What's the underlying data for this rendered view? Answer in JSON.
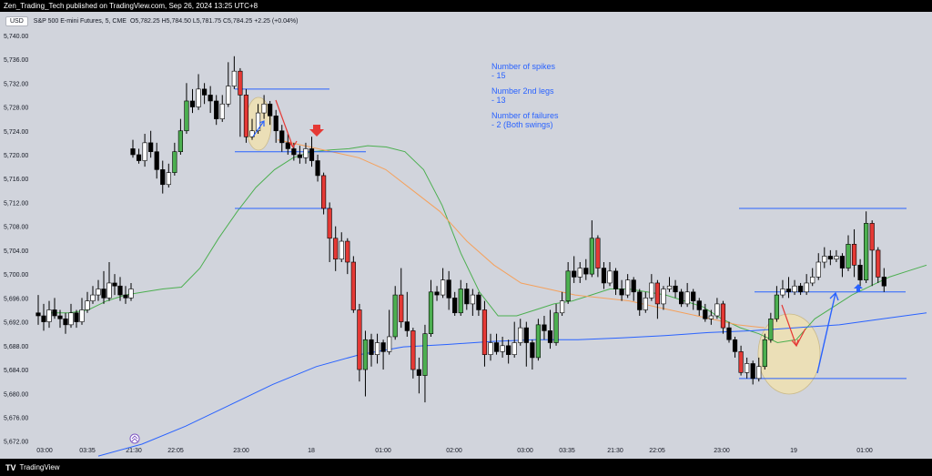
{
  "header": {
    "published_line": "Zen_Trading_Tech published on TradingView.com, Sep 26, 2024 13:25 UTC+8"
  },
  "legend": {
    "currency": "USD",
    "symbol": "S&P 500 E-mini Futures, 5, CME",
    "ohlc": "O5,782.25  H5,784.50  L5,781.75  C5,784.25  +2.25 (+0.04%)"
  },
  "footer": {
    "logo_glyph": "TV",
    "brand": "TradingView"
  },
  "notes": {
    "spikes_label": "Number of spikes",
    "spikes_value": "- 15",
    "second_legs_label": "Number 2nd legs",
    "second_legs_value": "- 13",
    "failures_label": "Number of failures",
    "failures_value": "- 2 (Both swings)"
  },
  "colors": {
    "background": "#d1d4dc",
    "bull_body": "#ffffff",
    "bear_body": "#000000",
    "signal_bull": "#4caf50",
    "signal_bear": "#e53935",
    "ema_fast": "#4caf50",
    "ema_slow": "#2962ff",
    "ema_orange": "#f5a15c",
    "annotation_blue": "#2962ff",
    "annotation_red": "#e53935",
    "highlight_fill": "#f0e0b0"
  },
  "chart_data": {
    "type": "candlestick",
    "y_tick_labels": [
      "5,740.00",
      "5,736.00",
      "5,732.00",
      "5,728.00",
      "5,724.00",
      "5,720.00",
      "5,716.00",
      "5,712.00",
      "5,708.00",
      "5,704.00",
      "5,700.00",
      "5,696.00",
      "5,692.00",
      "5,688.00",
      "5,684.00",
      "5,680.00",
      "5,676.00",
      "5,672.00"
    ],
    "x_tick_labels": [
      "03:00",
      "03:35",
      "21:30",
      "22:05",
      "23:00",
      "18",
      "01:00",
      "02:00",
      "03:00",
      "03:35",
      "21:30",
      "22:05",
      "23:00",
      "19",
      "01:00"
    ],
    "ylim": [
      5671.5,
      5741.5
    ],
    "candles": [
      [
        5693.5,
        5693.0,
        5696.5,
        5691.5
      ],
      [
        5693.0,
        5692.0,
        5695.0,
        5690.5
      ],
      [
        5692.0,
        5694.0,
        5695.5,
        5691.0
      ],
      [
        5694.0,
        5693.0,
        5696.0,
        5692.5
      ],
      [
        5693.0,
        5692.5,
        5694.0,
        5691.0
      ],
      [
        5692.5,
        5691.5,
        5693.5,
        5690.0
      ],
      [
        5691.5,
        5693.5,
        5695.0,
        5691.0
      ],
      [
        5693.5,
        5692.0,
        5694.0,
        5691.0
      ],
      [
        5692.0,
        5694.0,
        5696.0,
        5691.5
      ],
      [
        5694.0,
        5695.5,
        5697.0,
        5693.5
      ],
      [
        5695.5,
        5696.5,
        5698.0,
        5695.0
      ],
      [
        5696.5,
        5697.5,
        5699.0,
        5695.5
      ],
      [
        5697.5,
        5696.0,
        5700.5,
        5695.0
      ],
      [
        5696.0,
        5698.5,
        5702.0,
        5695.5
      ],
      [
        5698.5,
        5698.0,
        5700.0,
        5696.5
      ],
      [
        5698.0,
        5696.5,
        5699.5,
        5695.5
      ],
      [
        5696.5,
        5696.0,
        5698.0,
        5695.0
      ],
      [
        5696.0,
        5697.5,
        5698.5,
        5695.5
      ],
      [
        5721.0,
        5720.0,
        5722.5,
        5719.5
      ],
      [
        5720.0,
        5719.0,
        5721.0,
        5718.5
      ],
      [
        5719.0,
        5722.0,
        5723.5,
        5718.0
      ],
      [
        5722.0,
        5720.5,
        5724.0,
        5719.5
      ],
      [
        5720.5,
        5717.5,
        5722.0,
        5716.0
      ],
      [
        5717.5,
        5715.0,
        5719.0,
        5713.5
      ],
      [
        5715.0,
        5717.0,
        5718.5,
        5714.5
      ],
      [
        5717.0,
        5720.5,
        5722.0,
        5716.5
      ],
      [
        5720.5,
        5724.0,
        5726.0,
        5720.0
      ],
      [
        5724.0,
        5729.0,
        5732.0,
        5723.5
      ],
      [
        5729.0,
        5728.0,
        5731.0,
        5727.0
      ],
      [
        5728.0,
        5731.0,
        5733.5,
        5727.5
      ],
      [
        5731.0,
        5730.0,
        5732.0,
        5728.5
      ],
      [
        5730.0,
        5729.0,
        5731.5,
        5727.0
      ],
      [
        5729.0,
        5726.0,
        5730.0,
        5725.0
      ],
      [
        5726.0,
        5728.5,
        5730.0,
        5725.5
      ],
      [
        5728.5,
        5731.5,
        5735.5,
        5728.0
      ],
      [
        5731.5,
        5734.0,
        5736.5,
        5731.0
      ],
      [
        5734.0,
        5730.0,
        5734.5,
        5723.0
      ],
      [
        5730.0,
        5723.0,
        5731.0,
        5722.0
      ],
      [
        5723.0,
        5724.0,
        5726.0,
        5722.5
      ],
      [
        5724.0,
        5727.0,
        5728.5,
        5723.5
      ],
      [
        5727.0,
        5728.5,
        5730.0,
        5726.0
      ],
      [
        5728.5,
        5726.5,
        5729.0,
        5725.0
      ],
      [
        5726.5,
        5724.0,
        5727.5,
        5722.0
      ],
      [
        5724.0,
        5722.0,
        5725.0,
        5720.5
      ],
      [
        5722.0,
        5721.0,
        5723.5,
        5720.0
      ],
      [
        5721.0,
        5720.0,
        5722.0,
        5719.0
      ],
      [
        5720.0,
        5719.5,
        5721.5,
        5718.5
      ],
      [
        5719.5,
        5721.0,
        5722.0,
        5718.5
      ],
      [
        5721.0,
        5719.0,
        5723.0,
        5718.0
      ],
      [
        5719.0,
        5716.5,
        5720.0,
        5715.5
      ],
      [
        5716.5,
        5711.0,
        5717.0,
        5710.0
      ],
      [
        5711.0,
        5706.0,
        5712.0,
        5702.0
      ],
      [
        5706.0,
        5702.5,
        5708.0,
        5700.5
      ],
      [
        5702.5,
        5705.5,
        5707.0,
        5702.0
      ],
      [
        5705.5,
        5702.0,
        5706.0,
        5700.0
      ],
      [
        5702.0,
        5694.0,
        5703.0,
        5693.5
      ],
      [
        5694.0,
        5684.0,
        5695.0,
        5682.0
      ],
      [
        5684.0,
        5689.0,
        5690.5,
        5679.5
      ],
      [
        5689.0,
        5686.5,
        5690.0,
        5684.5
      ],
      [
        5686.5,
        5688.5,
        5690.0,
        5685.0
      ],
      [
        5688.5,
        5687.0,
        5689.0,
        5684.0
      ],
      [
        5687.0,
        5689.5,
        5694.0,
        5686.5
      ],
      [
        5689.5,
        5696.5,
        5698.0,
        5689.0
      ],
      [
        5696.5,
        5692.0,
        5701.0,
        5691.0
      ],
      [
        5692.0,
        5690.5,
        5697.0,
        5689.5
      ],
      [
        5690.5,
        5684.0,
        5691.0,
        5682.5
      ],
      [
        5684.0,
        5683.0,
        5686.0,
        5680.0
      ],
      [
        5683.0,
        5690.0,
        5691.5,
        5678.5
      ],
      [
        5690.0,
        5697.0,
        5699.0,
        5689.5
      ],
      [
        5697.0,
        5696.5,
        5698.0,
        5695.5
      ],
      [
        5696.5,
        5699.0,
        5701.0,
        5696.0
      ],
      [
        5699.0,
        5696.0,
        5700.5,
        5694.0
      ],
      [
        5696.0,
        5693.5,
        5697.0,
        5693.0
      ],
      [
        5693.5,
        5697.5,
        5699.0,
        5693.0
      ],
      [
        5697.5,
        5695.0,
        5698.5,
        5694.0
      ],
      [
        5695.0,
        5696.5,
        5697.5,
        5693.0
      ],
      [
        5696.5,
        5694.0,
        5697.0,
        5693.0
      ],
      [
        5694.0,
        5686.5,
        5695.5,
        5684.5
      ],
      [
        5686.5,
        5688.5,
        5690.0,
        5685.5
      ],
      [
        5688.5,
        5687.0,
        5690.0,
        5686.5
      ],
      [
        5687.0,
        5688.0,
        5689.5,
        5686.0
      ],
      [
        5688.0,
        5686.5,
        5689.0,
        5685.0
      ],
      [
        5686.5,
        5688.5,
        5692.0,
        5686.0
      ],
      [
        5688.5,
        5691.0,
        5692.5,
        5688.0
      ],
      [
        5691.0,
        5688.5,
        5692.0,
        5684.5
      ],
      [
        5688.5,
        5686.0,
        5689.0,
        5684.0
      ],
      [
        5686.0,
        5691.5,
        5692.5,
        5685.5
      ],
      [
        5691.5,
        5690.5,
        5693.0,
        5689.0
      ],
      [
        5690.5,
        5688.5,
        5694.0,
        5687.5
      ],
      [
        5688.5,
        5693.5,
        5695.0,
        5688.0
      ],
      [
        5693.5,
        5695.5,
        5697.0,
        5693.0
      ],
      [
        5695.5,
        5700.5,
        5702.0,
        5695.0
      ],
      [
        5700.5,
        5699.5,
        5703.0,
        5698.5
      ],
      [
        5699.5,
        5701.0,
        5702.0,
        5698.5
      ],
      [
        5701.0,
        5700.0,
        5702.5,
        5699.0
      ],
      [
        5700.0,
        5706.0,
        5709.0,
        5699.5
      ],
      [
        5706.0,
        5701.0,
        5706.5,
        5699.5
      ],
      [
        5701.0,
        5698.5,
        5702.0,
        5697.5
      ],
      [
        5698.5,
        5700.5,
        5702.0,
        5698.0
      ],
      [
        5700.5,
        5697.5,
        5701.0,
        5696.5
      ],
      [
        5697.5,
        5696.5,
        5699.0,
        5695.5
      ],
      [
        5696.5,
        5699.0,
        5700.0,
        5696.0
      ],
      [
        5699.0,
        5697.0,
        5699.5,
        5695.5
      ],
      [
        5697.0,
        5694.0,
        5697.5,
        5693.0
      ],
      [
        5694.0,
        5696.0,
        5697.0,
        5693.5
      ],
      [
        5696.0,
        5698.5,
        5700.0,
        5695.5
      ],
      [
        5698.5,
        5695.0,
        5699.0,
        5692.5
      ],
      [
        5695.0,
        5697.5,
        5698.0,
        5694.0
      ],
      [
        5697.5,
        5698.0,
        5699.5,
        5697.0
      ],
      [
        5698.0,
        5697.0,
        5699.0,
        5696.0
      ],
      [
        5697.0,
        5695.0,
        5697.5,
        5694.5
      ],
      [
        5695.0,
        5697.0,
        5698.5,
        5694.5
      ],
      [
        5697.0,
        5695.5,
        5697.5,
        5694.0
      ],
      [
        5695.5,
        5694.0,
        5696.0,
        5693.0
      ],
      [
        5694.0,
        5692.5,
        5695.0,
        5692.0
      ],
      [
        5692.5,
        5693.0,
        5694.0,
        5691.5
      ],
      [
        5693.0,
        5695.0,
        5696.0,
        5692.5
      ],
      [
        5695.0,
        5691.0,
        5695.5,
        5690.0
      ],
      [
        5691.0,
        5689.0,
        5692.0,
        5688.5
      ],
      [
        5689.0,
        5687.0,
        5689.5,
        5686.0
      ],
      [
        5687.0,
        5683.5,
        5688.0,
        5683.0
      ],
      [
        5683.5,
        5685.0,
        5686.0,
        5682.5
      ],
      [
        5685.0,
        5682.5,
        5685.5,
        5681.5
      ],
      [
        5682.5,
        5684.5,
        5686.0,
        5682.0
      ],
      [
        5684.5,
        5689.0,
        5690.0,
        5684.0
      ],
      [
        5689.0,
        5692.5,
        5693.5,
        5688.5
      ],
      [
        5692.5,
        5696.5,
        5698.0,
        5692.0
      ],
      [
        5696.5,
        5697.5,
        5699.0,
        5696.0
      ],
      [
        5697.5,
        5697.0,
        5699.5,
        5696.0
      ],
      [
        5697.0,
        5698.0,
        5699.0,
        5696.5
      ],
      [
        5698.0,
        5697.0,
        5698.5,
        5696.5
      ],
      [
        5697.0,
        5698.5,
        5700.0,
        5696.5
      ],
      [
        5698.5,
        5699.5,
        5701.0,
        5698.0
      ],
      [
        5699.5,
        5702.0,
        5703.5,
        5699.0
      ],
      [
        5702.0,
        5703.0,
        5704.5,
        5701.0
      ],
      [
        5703.0,
        5702.5,
        5704.0,
        5701.5
      ],
      [
        5702.5,
        5703.0,
        5704.0,
        5702.0
      ],
      [
        5703.0,
        5701.0,
        5703.5,
        5699.5
      ],
      [
        5701.0,
        5705.0,
        5706.5,
        5700.5
      ],
      [
        5705.0,
        5701.5,
        5707.5,
        5699.5
      ],
      [
        5701.5,
        5699.0,
        5702.5,
        5698.0
      ],
      [
        5699.0,
        5708.5,
        5710.5,
        5698.5
      ],
      [
        5708.5,
        5704.0,
        5709.0,
        5698.0
      ],
      [
        5704.0,
        5699.5,
        5704.5,
        5698.5
      ],
      [
        5699.5,
        5698.0,
        5701.0,
        5697.0
      ]
    ],
    "ema_fast": [
      5693.5,
      5693.5,
      5694.0,
      5695.5,
      5696.5,
      5697.0,
      5697.5,
      5697.8,
      5701.0,
      5706.0,
      5710.5,
      5714.5,
      5717.5,
      5719.5,
      5720.5,
      5720.8,
      5721.0,
      5721.5,
      5721.3,
      5720.5,
      5717.5,
      5711.5,
      5703.5,
      5697.0,
      5693.0,
      5693.0,
      5694.0,
      5695.0,
      5695.5,
      5696.5,
      5697.5,
      5697.5,
      5697.0,
      5696.5,
      5695.5,
      5694.5,
      5692.5,
      5691.0,
      5690.0,
      5688.5,
      5689.0,
      5692.5,
      5694.5,
      5696.5,
      5698.0,
      5699.5,
      5700.5,
      5701.5
    ],
    "ema_orange": [
      5722.5,
      5721.5,
      5720.5,
      5719.5,
      5717.5,
      5714.0,
      5710.5,
      5705.5,
      5701.5,
      5698.5,
      5697.5,
      5696.5,
      5696.0,
      5695.5,
      5694.5,
      5693.5,
      5692.5,
      5691.5,
      5691.0
    ],
    "ema_slow": [
      5669.5,
      5671.5,
      5674.5,
      5678.0,
      5681.5,
      5684.5,
      5686.5,
      5687.8,
      5688.2,
      5688.7,
      5689.0,
      5689.0,
      5689.3,
      5689.7,
      5690.2,
      5690.5,
      5691.0,
      5691.5,
      5692.5,
      5693.5
    ]
  }
}
